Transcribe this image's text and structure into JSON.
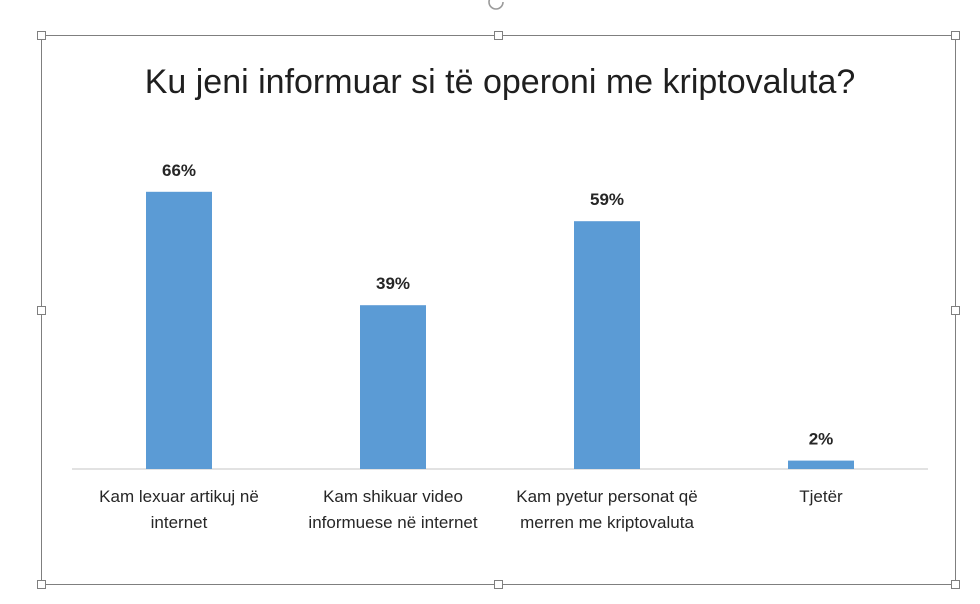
{
  "chart_data": {
    "type": "bar",
    "title": "Ku jeni informuar si të operoni me kriptovaluta?",
    "categories": [
      "Kam lexuar artikuj në internet",
      "Kam shikuar video informuese në internet",
      "Kam pyetur personat që merren me kriptovaluta",
      "Tjetër"
    ],
    "values": [
      66,
      39,
      59,
      2
    ],
    "data_labels": [
      "66%",
      "39%",
      "59%",
      "2%"
    ],
    "xlabel": "",
    "ylabel": "",
    "ylim": [
      0,
      70
    ],
    "grid": false,
    "legend": "none",
    "bar_color": "#5b9bd5"
  }
}
